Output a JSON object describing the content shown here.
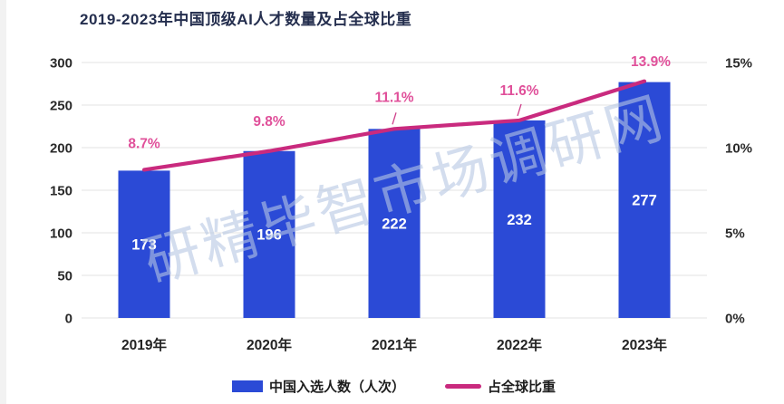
{
  "title": "2019-2023年中国顶级AI人才数量及占全球比重",
  "watermark": "研精毕智市场调研网",
  "colors": {
    "bar": "#2b4ad6",
    "line": "#c92a7e",
    "percent_label": "#e0509a",
    "bar_label": "#ffffff",
    "title": "#242e4e",
    "axis_text": "#2a2a2a",
    "grid": "#e3e3e3",
    "watermark": "rgba(182,199,226,0.60)"
  },
  "chart_data": {
    "type": "combo: bar + line (dual axis)",
    "title": "2019-2023年中国顶级AI人才数量及占全球比重",
    "categories": [
      "2019年",
      "2020年",
      "2021年",
      "2022年",
      "2023年"
    ],
    "series": [
      {
        "name": "中国入选人数（人次）",
        "type": "bar",
        "axis": "left",
        "values": [
          173,
          196,
          222,
          232,
          277
        ],
        "labels": [
          "173",
          "196",
          "222",
          "232",
          "277"
        ]
      },
      {
        "name": "占全球比重",
        "type": "line",
        "axis": "right",
        "values": [
          8.7,
          9.8,
          11.1,
          11.6,
          13.9
        ],
        "labels": [
          "8.7%",
          "9.8%",
          "11.1%",
          "11.6%",
          "13.9%"
        ]
      }
    ],
    "left_axis": {
      "range": [
        0,
        300
      ],
      "ticks": [
        0,
        50,
        100,
        150,
        200,
        250,
        300
      ]
    },
    "right_axis": {
      "range_percent": [
        0,
        15
      ],
      "tick_values": [
        0,
        5,
        10,
        15
      ],
      "ticks": [
        "0%",
        "5%",
        "10%",
        "15%"
      ]
    },
    "grid": true,
    "legend_position": "bottom"
  },
  "legend": {
    "items": [
      {
        "label": "中国入选人数（人次）",
        "swatch": "bar"
      },
      {
        "label": "占全球比重",
        "swatch": "line"
      }
    ]
  }
}
